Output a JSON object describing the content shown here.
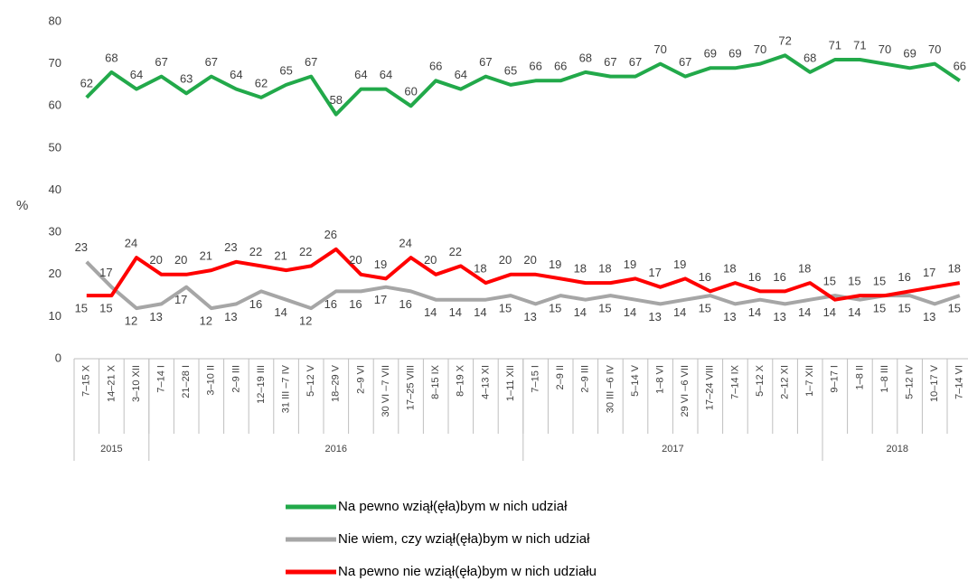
{
  "chart_data": {
    "type": "line",
    "y_label": "%",
    "groups": [
      {
        "label": "2015",
        "categories": [
          "7–15 X",
          "14–21 X",
          "3–10 XII"
        ]
      },
      {
        "label": "2016",
        "categories": [
          "7–14 I",
          "21–28 I",
          "3–10 II",
          "2–9 III",
          "12–19 III",
          "31 III –7 IV",
          "5–12 V",
          "18–29 V",
          "2–9 VI",
          "30 VI –7 VII",
          "17–25 VIII",
          "8–15 IX",
          "8–19 X",
          "4–13 XI",
          "1–11 XII"
        ]
      },
      {
        "label": "2017",
        "categories": [
          "7–15 I",
          "2–9 II",
          "2–9 III",
          "30 III –6 IV",
          "5–14 V",
          "1–8 VI",
          "29 VI –6 VII",
          "17–24 VIII",
          "7–14 IX",
          "5–12 X",
          "2–12 XI",
          "1–7 XII"
        ]
      },
      {
        "label": "2018",
        "categories": [
          "9–17 I",
          "1–8 II",
          "1–8 III",
          "5–12 IV",
          "10–17 V",
          "7–14 VI"
        ]
      }
    ],
    "series": [
      {
        "name": "Na pewno wziął(ęła)bym w nich udział",
        "color": "#22a94a",
        "values": [
          62,
          68,
          64,
          67,
          63,
          67,
          64,
          62,
          65,
          67,
          58,
          64,
          64,
          60,
          66,
          64,
          67,
          65,
          66,
          66,
          68,
          67,
          67,
          70,
          67,
          69,
          69,
          70,
          72,
          68,
          71,
          71,
          70,
          69,
          70,
          66
        ]
      },
      {
        "name": "Nie wiem, czy wziął(ęła)bym w nich udział",
        "color": "#a6a6a6",
        "values": [
          23,
          17,
          12,
          13,
          17,
          12,
          13,
          16,
          14,
          12,
          16,
          16,
          17,
          16,
          14,
          14,
          14,
          15,
          13,
          15,
          14,
          15,
          14,
          13,
          14,
          15,
          13,
          14,
          13,
          14,
          15,
          14,
          15,
          15,
          13,
          15
        ]
      },
      {
        "name": "Na pewno nie wziął(ęła)bym w nich udziału",
        "color": "#ff0000",
        "values": [
          15,
          15,
          24,
          20,
          20,
          21,
          23,
          22,
          21,
          22,
          26,
          20,
          19,
          24,
          20,
          22,
          18,
          20,
          20,
          19,
          18,
          18,
          19,
          17,
          19,
          16,
          18,
          16,
          16,
          18,
          14,
          15,
          15,
          16,
          17,
          18
        ]
      }
    ],
    "ylim": [
      0,
      80
    ],
    "yticks": [
      0,
      10,
      20,
      30,
      40,
      50,
      60,
      70,
      80
    ]
  }
}
